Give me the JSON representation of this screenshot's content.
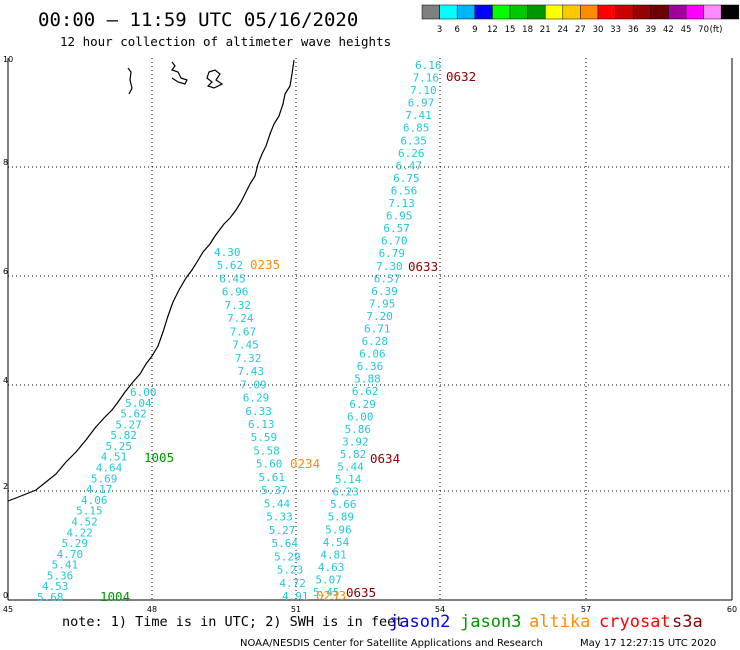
{
  "header": {
    "title": "00:00 – 11:59 UTC 05/16/2020",
    "subtitle": "12 hour collection of altimeter wave heights"
  },
  "legend": {
    "colors": [
      "#7f7f7f",
      "#00ffff",
      "#00b4ff",
      "#0000ff",
      "#00ff00",
      "#00c800",
      "#009600",
      "#ffff00",
      "#ffc800",
      "#ff8c00",
      "#ff0000",
      "#c80000",
      "#960000",
      "#6e0000",
      "#a0009b",
      "#ff00ff",
      "#ff8cff",
      "#000000"
    ],
    "labels": [
      "3",
      "6",
      "9",
      "12",
      "15",
      "18",
      "21",
      "24",
      "27",
      "30",
      "33",
      "36",
      "39",
      "42",
      "45",
      "70",
      "(ft)"
    ]
  },
  "axes": {
    "x_ticks": [
      "45",
      "48",
      "51",
      "54",
      "57",
      "60"
    ],
    "y_ticks": [
      "0",
      "2",
      "4",
      "6",
      "8",
      "10"
    ]
  },
  "tracks": [
    {
      "name": "track-west",
      "values": [
        "6.00",
        "5.04",
        "5.62",
        "5.27",
        "5.82",
        "5.25",
        "4.51",
        "4.64",
        "5.69",
        "4.17",
        "4.06",
        "5.15",
        "4.52",
        "4.22",
        "5.29",
        "4.70",
        "5.41",
        "5.36",
        "4.53",
        "5.68"
      ]
    },
    {
      "name": "track-central",
      "values": [
        "4.30",
        "5.62",
        "6.45",
        "6.96",
        "7.32",
        "7.24",
        "7.67",
        "7.45",
        "7.32",
        "7.43",
        "7.09",
        "6.29",
        "6.33",
        "6.13",
        "5.59",
        "5.58",
        "5.60",
        "5.61",
        "5.37",
        "5.44",
        "5.33",
        "5.27",
        "5.64",
        "5.29",
        "5.23",
        "4.72",
        "4.91"
      ]
    },
    {
      "name": "track-east",
      "values": [
        "6.16",
        "7.16",
        "7.10",
        "6.97",
        "7.41",
        "6.85",
        "6.35",
        "6.26",
        "6.47",
        "6.75",
        "6.56",
        "7.13",
        "6.95",
        "6.57",
        "6.70",
        "6.79",
        "7.30",
        "6.57",
        "6.39",
        "7.95",
        "7.20",
        "6.71",
        "6.28",
        "6.06",
        "6.36",
        "5.88",
        "6.62",
        "6.29",
        "6.00",
        "5.86",
        "3.92",
        "5.82",
        "5.44",
        "5.14",
        "6.23",
        "5.66",
        "5.89",
        "5.96",
        "4.54",
        "4.81",
        "4.63",
        "5.07",
        "5.45"
      ]
    }
  ],
  "pass_labels": [
    {
      "name": "pass-1004",
      "text": "1004",
      "color": "#009600"
    },
    {
      "name": "pass-1005",
      "text": "1005",
      "color": "#009600"
    },
    {
      "name": "pass-0235",
      "text": "0235",
      "color": "#ff8c00"
    },
    {
      "name": "pass-0234",
      "text": "0234",
      "color": "#ff8c00"
    },
    {
      "name": "pass-0233",
      "text": "0233",
      "color": "#ff8c00"
    },
    {
      "name": "pass-0632",
      "text": "0632",
      "color": "#8b0000"
    },
    {
      "name": "pass-0633",
      "text": "0633",
      "color": "#8b0000"
    },
    {
      "name": "pass-0634",
      "text": "0634",
      "color": "#8b0000"
    },
    {
      "name": "pass-0635",
      "text": "0635",
      "color": "#8b0000"
    }
  ],
  "footer": {
    "note": "note: 1) Time is in UTC; 2) SWH is in feet",
    "satellites": [
      {
        "name": "jason2",
        "color": "#0000ff"
      },
      {
        "name": "jason3",
        "color": "#009600"
      },
      {
        "name": "altika",
        "color": "#ff8c00"
      },
      {
        "name": "cryosat",
        "color": "#ff0000"
      },
      {
        "name": "s3a",
        "color": "#8b0000"
      }
    ],
    "credit": "NOAA/NESDIS Center for Satellite Applications and Research",
    "timestamp": "May 17 12:27:15 UTC 2020"
  }
}
